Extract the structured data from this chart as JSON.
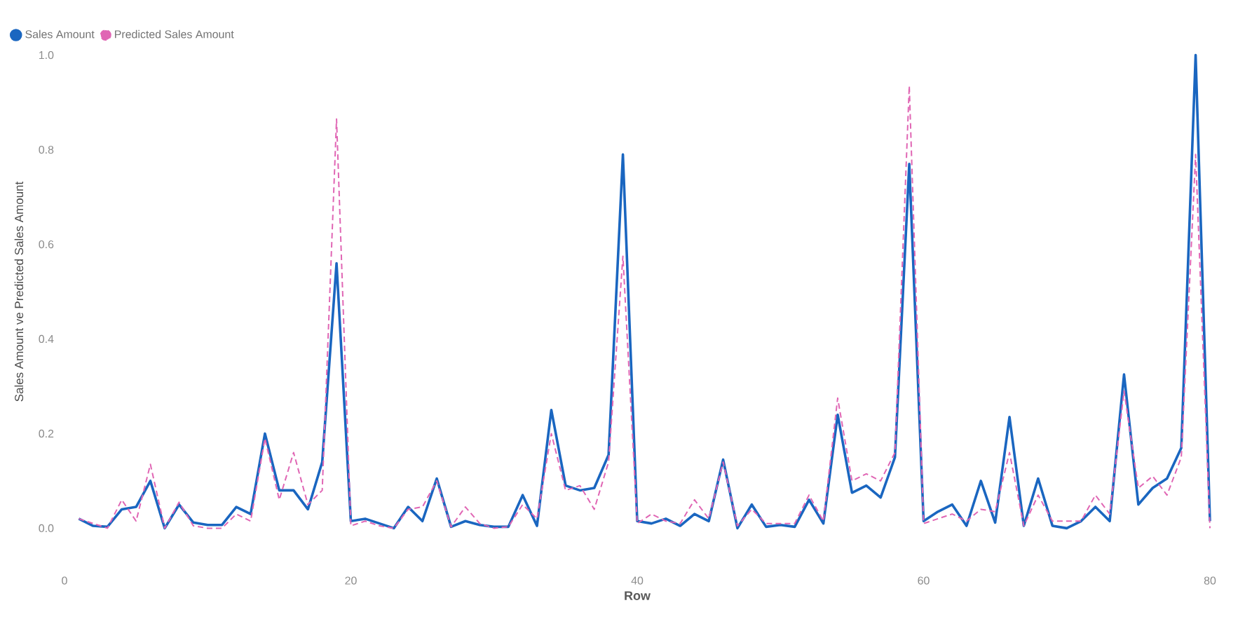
{
  "chart_data": {
    "type": "line",
    "xlabel": "Row",
    "ylabel": "Sales Amount ve Predicted Sales Amount",
    "x": [
      1,
      2,
      3,
      4,
      5,
      6,
      7,
      8,
      9,
      10,
      11,
      12,
      13,
      14,
      15,
      16,
      17,
      18,
      19,
      20,
      21,
      22,
      23,
      24,
      25,
      26,
      27,
      28,
      29,
      30,
      31,
      32,
      33,
      34,
      35,
      36,
      37,
      38,
      39,
      40,
      41,
      42,
      43,
      44,
      45,
      46,
      47,
      48,
      49,
      50,
      51,
      52,
      53,
      54,
      55,
      56,
      57,
      58,
      59,
      60,
      61,
      62,
      63,
      64,
      65,
      66,
      67,
      68,
      69,
      70,
      71,
      72,
      73,
      74,
      75,
      76,
      77,
      78,
      79,
      80
    ],
    "series": [
      {
        "name": "Sales Amount",
        "color": "#1a66c0",
        "line_style": "solid",
        "values": [
          0.02,
          0.005,
          0.003,
          0.04,
          0.045,
          0.1,
          0.0,
          0.05,
          0.012,
          0.007,
          0.007,
          0.045,
          0.03,
          0.2,
          0.08,
          0.08,
          0.04,
          0.14,
          0.56,
          0.015,
          0.02,
          0.01,
          0.0,
          0.045,
          0.015,
          0.105,
          0.003,
          0.015,
          0.007,
          0.003,
          0.003,
          0.07,
          0.005,
          0.25,
          0.09,
          0.08,
          0.085,
          0.155,
          0.79,
          0.015,
          0.01,
          0.02,
          0.005,
          0.03,
          0.015,
          0.145,
          0.0,
          0.05,
          0.003,
          0.007,
          0.003,
          0.06,
          0.01,
          0.24,
          0.075,
          0.09,
          0.065,
          0.15,
          0.77,
          0.015,
          0.035,
          0.05,
          0.005,
          0.1,
          0.012,
          0.235,
          0.005,
          0.105,
          0.005,
          0.0,
          0.015,
          0.045,
          0.015,
          0.325,
          0.05,
          0.085,
          0.105,
          0.17,
          1.0,
          0.015
        ]
      },
      {
        "name": "Predicted Sales Amount",
        "color": "#e066b4",
        "line_style": "dashed",
        "values": [
          0.02,
          0.01,
          0.0,
          0.06,
          0.015,
          0.135,
          0.0,
          0.055,
          0.005,
          0.0,
          0.0,
          0.03,
          0.015,
          0.19,
          0.06,
          0.16,
          0.05,
          0.08,
          0.865,
          0.005,
          0.015,
          0.005,
          0.0,
          0.04,
          0.045,
          0.1,
          0.003,
          0.045,
          0.01,
          0.0,
          0.003,
          0.05,
          0.02,
          0.2,
          0.08,
          0.09,
          0.04,
          0.14,
          0.575,
          0.01,
          0.03,
          0.015,
          0.01,
          0.06,
          0.02,
          0.14,
          0.005,
          0.04,
          0.01,
          0.01,
          0.01,
          0.07,
          0.015,
          0.275,
          0.1,
          0.115,
          0.1,
          0.16,
          0.935,
          0.01,
          0.02,
          0.03,
          0.015,
          0.04,
          0.035,
          0.16,
          0.005,
          0.07,
          0.015,
          0.015,
          0.015,
          0.07,
          0.03,
          0.29,
          0.085,
          0.11,
          0.07,
          0.15,
          0.79,
          0.0
        ]
      }
    ],
    "xlim": [
      0,
      80
    ],
    "xticks": [
      0,
      20,
      40,
      60,
      80
    ],
    "yticks": [
      {
        "value": 0,
        "label": "0.0"
      },
      {
        "value": 0.2,
        "label": "0.2"
      },
      {
        "value": 0.4,
        "label": "0.4"
      },
      {
        "value": 0.6,
        "label": "0.6"
      },
      {
        "value": 0.8,
        "label": "0.8"
      },
      {
        "value": 1.0,
        "label": "1.0"
      }
    ],
    "ylim": [
      0,
      1.0
    ],
    "legend": "top left",
    "grid": false
  }
}
